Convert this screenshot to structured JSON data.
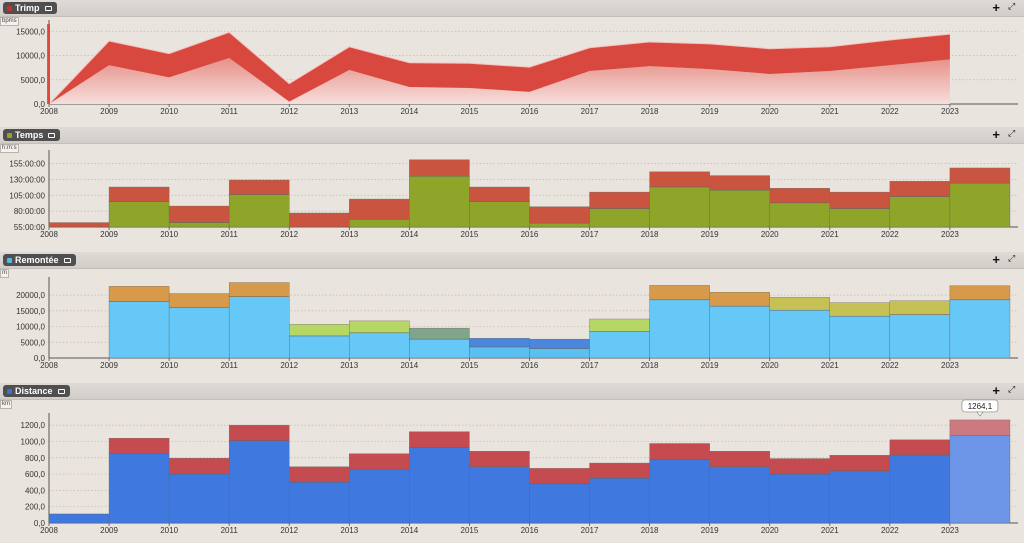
{
  "panels": [
    {
      "id": "trimp",
      "title": "Trimp",
      "dot_color": "#c8322a",
      "unit": "bpms"
    },
    {
      "id": "temps",
      "title": "Temps",
      "dot_color": "#8ea52a",
      "unit": "h:m:s"
    },
    {
      "id": "remontee",
      "title": "Remontée",
      "dot_color": "#55b8e6",
      "unit": "m"
    },
    {
      "id": "distance",
      "title": "Distance",
      "dot_color": "#3a6fd8",
      "unit": "km"
    }
  ],
  "tooltip": {
    "value": "1264,1"
  },
  "chart_data": [
    {
      "type": "area",
      "title": "Trimp",
      "categories": [
        "2008",
        "2009",
        "2010",
        "2011",
        "2012",
        "2013",
        "2014",
        "2015",
        "2016",
        "2017",
        "2018",
        "2019",
        "2020",
        "2021",
        "2022",
        "2023"
      ],
      "yticks": [
        "0,0",
        "5000,0",
        "10000,0",
        "15000,0"
      ],
      "ylim": [
        0,
        16500
      ],
      "series": [
        {
          "values": [
            0,
            8000,
            5500,
            9500,
            500,
            7000,
            3500,
            3300,
            2500,
            6800,
            7800,
            7200,
            6200,
            6800,
            8000,
            9200
          ]
        },
        {
          "values": [
            0,
            13000,
            10400,
            14800,
            4200,
            11800,
            8500,
            8400,
            7600,
            11600,
            12800,
            12400,
            11400,
            11800,
            13200,
            14400
          ]
        }
      ]
    },
    {
      "type": "bar",
      "title": "Temps",
      "categories": [
        "2008",
        "2009",
        "2010",
        "2011",
        "2012",
        "2013",
        "2014",
        "2015",
        "2016",
        "2017",
        "2018",
        "2019",
        "2020",
        "2021",
        "2022",
        "2023"
      ],
      "yticks": [
        "55:00:00",
        "80:00:00",
        "105:00:00",
        "130:00:00",
        "155:00:00"
      ],
      "ylim": [
        55,
        170
      ],
      "series": [
        {
          "values": [
            55,
            95,
            62,
            106,
            55,
            67,
            135,
            95,
            61,
            84,
            118,
            113,
            93,
            84,
            103,
            124
          ]
        },
        {
          "values": [
            62,
            118,
            88,
            129,
            77,
            99,
            161,
            118,
            87,
            110,
            142,
            136,
            116,
            110,
            127,
            148
          ]
        }
      ]
    },
    {
      "type": "bar",
      "title": "Remontée",
      "categories": [
        "2008",
        "2009",
        "2010",
        "2011",
        "2012",
        "2013",
        "2014",
        "2015",
        "2016",
        "2017",
        "2018",
        "2019",
        "2020",
        "2021",
        "2022",
        "2023"
      ],
      "yticks": [
        "0,0",
        "5000,0",
        "10000,0",
        "15000,0",
        "20000,0"
      ],
      "ylim": [
        0,
        24500
      ],
      "series": [
        {
          "values": [
            0,
            18000,
            16000,
            19500,
            7000,
            8000,
            6000,
            3500,
            3000,
            8500,
            18500,
            16500,
            15200,
            13300,
            13800,
            18500
          ]
        },
        {
          "values": [
            0,
            22800,
            20500,
            24000,
            10700,
            11800,
            9500,
            6300,
            6000,
            12400,
            23100,
            20900,
            19300,
            17600,
            18200,
            23000
          ]
        }
      ]
    },
    {
      "type": "bar",
      "title": "Distance",
      "categories": [
        "2008",
        "2009",
        "2010",
        "2011",
        "2012",
        "2013",
        "2014",
        "2015",
        "2016",
        "2017",
        "2018",
        "2019",
        "2020",
        "2021",
        "2022",
        "2023"
      ],
      "yticks": [
        "0,0",
        "200,0",
        "400,0",
        "600,0",
        "800,0",
        "1000,0",
        "1200,0"
      ],
      "ylim": [
        0,
        1300
      ],
      "series": [
        {
          "values": [
            110,
            855,
            600,
            1010,
            500,
            660,
            925,
            690,
            480,
            550,
            780,
            690,
            600,
            640,
            835,
            1070
          ]
        },
        {
          "values": [
            110,
            1040,
            795,
            1200,
            690,
            850,
            1120,
            880,
            670,
            735,
            975,
            880,
            790,
            830,
            1020,
            1264.1
          ]
        }
      ]
    }
  ]
}
